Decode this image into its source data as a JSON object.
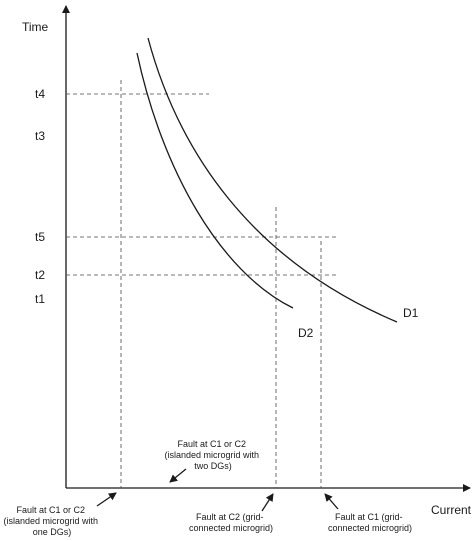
{
  "axes": {
    "x_label": "Current",
    "y_label": "Time"
  },
  "time_levels": {
    "t4": "t4",
    "t3": "t3",
    "t5": "t5",
    "t2": "t2",
    "t1": "t1"
  },
  "curves": {
    "d1": "D1",
    "d2": "D2"
  },
  "annotations": {
    "islanded_two": [
      "Fault at C1 or C2",
      "(islanded microgrid with",
      "two DGs)"
    ],
    "islanded_one": [
      "Fault at C1 or C2",
      "(islanded microgrid with",
      "one DGs)"
    ],
    "fault_c2": [
      "Fault at C2 (grid-",
      "connected microgrid)"
    ],
    "fault_c1": [
      "Fault at C1 (grid-",
      "connected microgrid)"
    ]
  }
}
